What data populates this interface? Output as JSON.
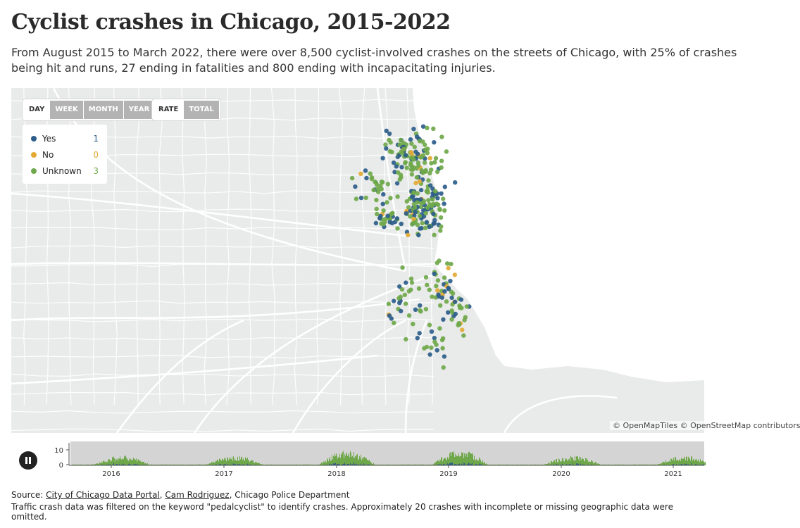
{
  "header": {
    "title": "Cyclist crashes in Chicago, 2015-2022",
    "subtitle": "From August 2015 to March 2022, there were over 8,500 cyclist-involved crashes on the streets of Chicago, with 25% of crashes being hit and runs, 27 ending in fatalities and 800 ending with incapacitating injuries."
  },
  "controls": {
    "period_buttons": [
      "DAY",
      "WEEK",
      "MONTH",
      "YEAR"
    ],
    "period_active": "DAY",
    "mode_buttons": [
      "RATE",
      "TOTAL"
    ],
    "mode_active": "RATE"
  },
  "legend": {
    "items": [
      {
        "label": "Yes",
        "count": "1",
        "color": "#2c5d8a"
      },
      {
        "label": "No",
        "count": "0",
        "color": "#e3a934"
      },
      {
        "label": "Unknown",
        "count": "3",
        "color": "#6fa84a"
      }
    ]
  },
  "map": {
    "attribution": "© OpenMapTiles © OpenStreetMap contributors",
    "land_color": "#e9eaea",
    "water_color": "#ffffff",
    "road_color": "#ffffff"
  },
  "timeline": {
    "y_ticks": [
      "10",
      "0"
    ],
    "x_ticks": [
      "2016",
      "2017",
      "2018",
      "2019",
      "2020",
      "2021"
    ],
    "play_state": "playing"
  },
  "footer": {
    "source_prefix": "Source: ",
    "source_link_1": "City of Chicago Data Portal",
    "separator": ", ",
    "source_link_2": "Cam Rodriguez",
    "source_suffix": ", Chicago Police Department",
    "note": "Traffic crash data was filtered on the keyword \"pedalcyclist\" to identify crashes. Approximately 20 crashes with incomplete or missing geographic data were omitted."
  }
}
